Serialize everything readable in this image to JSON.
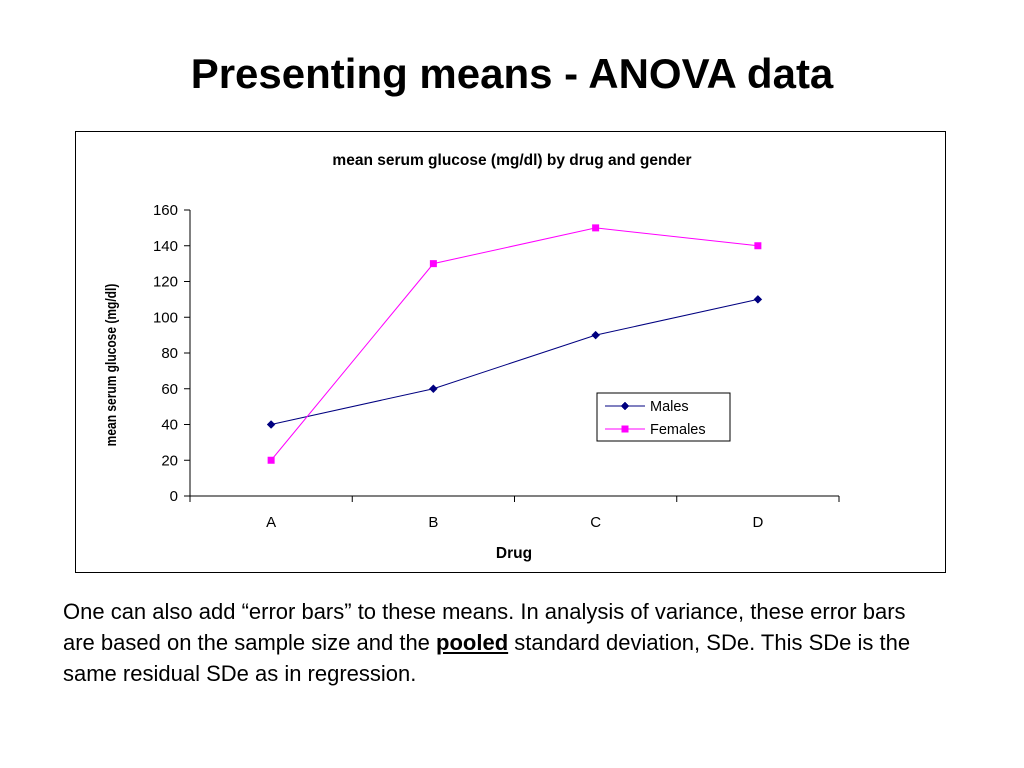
{
  "slide": {
    "title": "Presenting means - ANOVA data",
    "body_part1": "One can also add “error bars” to these means. In analysis of variance, these error bars are based on the sample size and the ",
    "body_emphasis": "pooled",
    "body_part2": " standard deviation, SDe. This SDe is the same residual SDe as in regression."
  },
  "chart_data": {
    "type": "line",
    "title": "mean serum glucose (mg/dl) by drug and gender",
    "xlabel": "Drug",
    "ylabel": "mean serum glucose (mg/dl)",
    "categories": [
      "A",
      "B",
      "C",
      "D"
    ],
    "ylim": [
      0,
      160
    ],
    "yticks": [
      0,
      20,
      40,
      60,
      80,
      100,
      120,
      140,
      160
    ],
    "grid": false,
    "legend_position": "right-center",
    "series": [
      {
        "name": "Males",
        "values": [
          40,
          60,
          90,
          110
        ],
        "color": "#000080",
        "marker": "diamond"
      },
      {
        "name": "Females",
        "values": [
          20,
          130,
          150,
          140
        ],
        "color": "#ff00ff",
        "marker": "square"
      }
    ]
  }
}
